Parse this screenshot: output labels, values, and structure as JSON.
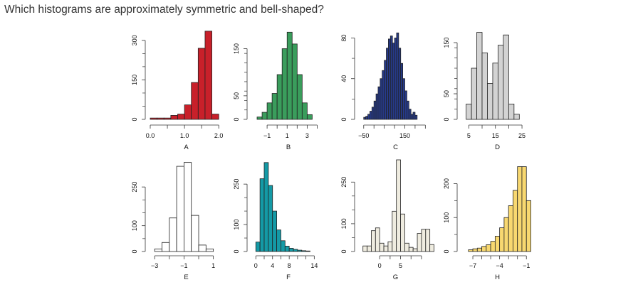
{
  "question": "Which histograms are approximately symmetric and bell-shaped?",
  "colors": {
    "A": "#c8202a",
    "B": "#3a9d5c",
    "C": "#263a8a",
    "D": "#d3d3d3",
    "E": "#ffffff",
    "F": "#149aa6",
    "G": "#efece0",
    "H": "#f8d870",
    "outline": "#222222"
  },
  "chart_data": [
    {
      "type": "bar",
      "label": "A",
      "xlim": [
        0,
        2.1
      ],
      "ylim": [
        0,
        340
      ],
      "xticks": [
        0.0,
        0.5,
        1.0,
        1.5,
        2.0
      ],
      "xtick_labels": [
        "0.0",
        "",
        "1.0",
        "",
        "2.0"
      ],
      "yticks": [
        0,
        150,
        300
      ],
      "ytick_labels": [
        "0",
        "150",
        "300"
      ],
      "bin_start": 0.0,
      "bin_width": 0.2,
      "values": [
        5,
        5,
        5,
        15,
        20,
        55,
        140,
        270,
        335,
        20
      ]
    },
    {
      "type": "bar",
      "label": "B",
      "xlim": [
        -2.5,
        4.75
      ],
      "ylim": [
        0,
        190
      ],
      "xticks": [
        -1,
        0,
        1,
        2,
        3,
        4
      ],
      "xtick_labels": [
        "−1",
        "",
        "1",
        "",
        "3",
        ""
      ],
      "yticks": [
        0,
        50,
        150
      ],
      "ytick_labels": [
        "0",
        "50",
        "150"
      ],
      "bin_start": -2.0,
      "bin_width": 0.5,
      "values": [
        5,
        15,
        35,
        55,
        95,
        150,
        185,
        160,
        95,
        35,
        10
      ]
    },
    {
      "type": "bar",
      "label": "C",
      "xlim": [
        -70,
        280
      ],
      "ylim": [
        0,
        88
      ],
      "xticks": [
        -50,
        0,
        50,
        100,
        150,
        200,
        250
      ],
      "xtick_labels": [
        "−50",
        "",
        "",
        "",
        "150",
        "",
        ""
      ],
      "yticks": [
        0,
        40,
        80
      ],
      "ytick_labels": [
        "0",
        "40",
        "80"
      ],
      "bin_start": -50,
      "bin_width": 10,
      "values": [
        2,
        3,
        5,
        8,
        12,
        18,
        25,
        32,
        40,
        48,
        58,
        70,
        79,
        82,
        75,
        80,
        85,
        70,
        55,
        40,
        28,
        18,
        10,
        5,
        7,
        4
      ]
    },
    {
      "type": "bar",
      "label": "D",
      "xlim": [
        2.5,
        29
      ],
      "ylim": [
        0,
        175
      ],
      "xticks": [
        5,
        10,
        15,
        20,
        25
      ],
      "xtick_labels": [
        "5",
        "",
        "15",
        "",
        "25"
      ],
      "yticks": [
        0,
        50,
        150
      ],
      "ytick_labels": [
        "0",
        "50",
        "150"
      ],
      "bin_start": 4,
      "bin_width": 2,
      "values": [
        30,
        100,
        170,
        130,
        70,
        110,
        145,
        165,
        30,
        10
      ]
    },
    {
      "type": "bar",
      "label": "E",
      "xlim": [
        -3.3,
        1.6
      ],
      "ylim": [
        0,
        355
      ],
      "xticks": [
        -3,
        -2,
        -1,
        0,
        1
      ],
      "xtick_labels": [
        "−3",
        "",
        "−1",
        "",
        "1"
      ],
      "yticks": [
        0,
        100,
        250
      ],
      "ytick_labels": [
        "0",
        "100",
        "250"
      ],
      "bin_start": -3.0,
      "bin_width": 0.5,
      "values": [
        10,
        35,
        130,
        330,
        345,
        140,
        25,
        10
      ]
    },
    {
      "type": "bar",
      "label": "F",
      "xlim": [
        -0.9,
        16.5
      ],
      "ylim": [
        0,
        340
      ],
      "xticks": [
        0,
        2,
        4,
        6,
        8,
        10,
        12,
        14
      ],
      "xtick_labels": [
        "0",
        "",
        "4",
        "",
        "8",
        "",
        "",
        "14"
      ],
      "yticks": [
        0,
        100,
        250
      ],
      "ytick_labels": [
        "0",
        "100",
        "250"
      ],
      "bin_start": 0,
      "bin_width": 1,
      "values": [
        35,
        270,
        330,
        245,
        150,
        80,
        40,
        20,
        12,
        8,
        5,
        3,
        2
      ]
    },
    {
      "type": "bar",
      "label": "G",
      "xlim": [
        -4.8,
        12.4
      ],
      "ylim": [
        0,
        330
      ],
      "xticks": [
        0,
        2.5,
        5,
        7.5,
        10
      ],
      "xtick_labels": [
        "0",
        "",
        "5",
        "",
        ""
      ],
      "yticks": [
        0,
        100,
        250
      ],
      "ytick_labels": [
        "0",
        "100",
        "250"
      ],
      "bin_start": -4,
      "bin_width": 1,
      "values": [
        20,
        20,
        75,
        85,
        30,
        20,
        35,
        145,
        330,
        135,
        30,
        15,
        10,
        65,
        80,
        80,
        25
      ]
    },
    {
      "type": "bar",
      "label": "H",
      "xlim": [
        -8.2,
        -0.3
      ],
      "ylim": [
        0,
        270
      ],
      "xticks": [
        -7,
        -6,
        -5,
        -4,
        -3,
        -2,
        -1
      ],
      "xtick_labels": [
        "−7",
        "",
        "",
        "−4",
        "",
        "",
        "−1"
      ],
      "yticks": [
        0,
        100,
        200
      ],
      "ytick_labels": [
        "0",
        "100",
        "200"
      ],
      "bin_start": -7.5,
      "bin_width": 0.5,
      "values": [
        5,
        8,
        10,
        15,
        20,
        30,
        45,
        70,
        100,
        135,
        180,
        250,
        250,
        150
      ]
    }
  ]
}
